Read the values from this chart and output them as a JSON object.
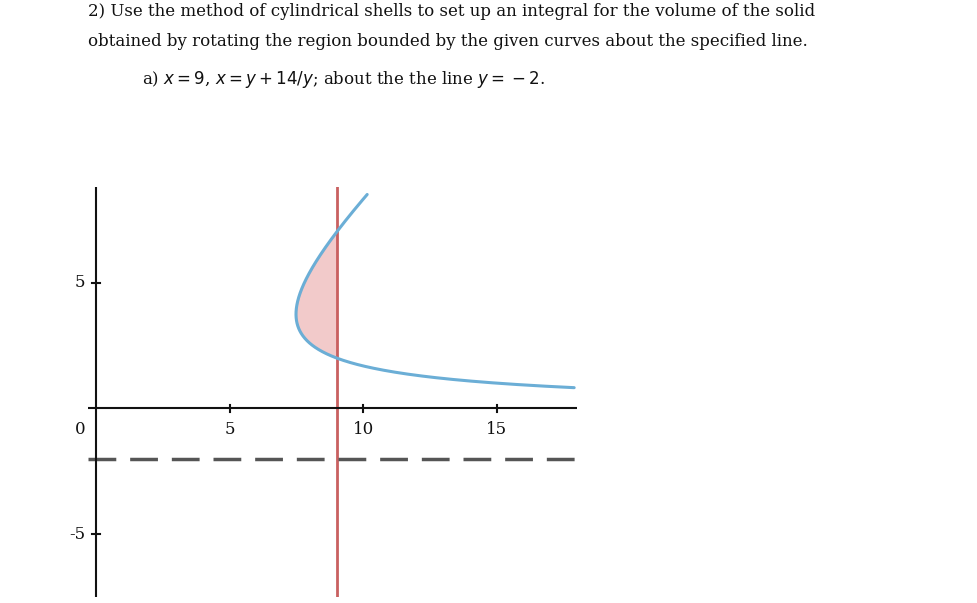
{
  "title_line1": "2) Use the method of cylindrical shells to set up an integral for the volume of the solid",
  "title_line2": "obtained by rotating the region bounded by the given curves about the specified line.",
  "subtitle": "a) $x = 9$, $x = y + 14/y$; about the the line $y = -2$.",
  "x_line": 9,
  "y_line": -2,
  "y_intersect_low": 2,
  "y_intersect_high": 7,
  "x_min": -0.3,
  "x_max": 18.0,
  "y_min": -7.5,
  "y_max": 8.8,
  "curve_color": "#6baed6",
  "vline_color": "#c96060",
  "dashed_color": "#555555",
  "fill_color": "#e8a0a0",
  "fill_alpha": 0.55,
  "axis_color": "#111111",
  "tick_fontsize": 12,
  "curve_linewidth": 2.2,
  "vline_linewidth": 2.0,
  "dashed_linewidth": 2.5,
  "xticks": [
    5,
    10,
    15
  ],
  "yticks": [
    5,
    -5
  ],
  "background_color": "#ffffff",
  "figsize": [
    9.78,
    6.03
  ],
  "dpi": 100
}
